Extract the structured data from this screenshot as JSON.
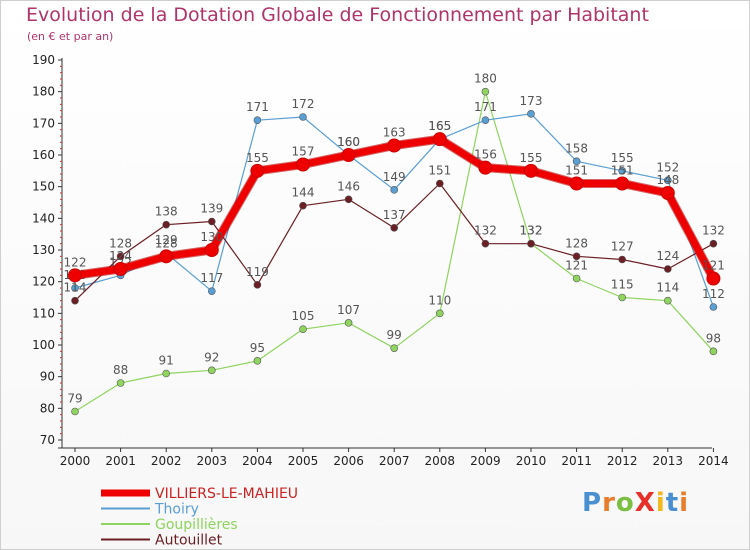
{
  "title": "Evolution de la Dotation Globale de Fonctionnement par Habitant",
  "subtitle": "(en € et par an)",
  "logo": {
    "text": "ProXiti",
    "letters": [
      "P",
      "r",
      "o",
      "X",
      "i",
      "t",
      "i"
    ],
    "colors": [
      "#4a8fd1",
      "#e87d2b",
      "#7cc043",
      "#e8302b",
      "#f2b81c",
      "#4a8fd1",
      "#e87d2b"
    ]
  },
  "chart_data": {
    "type": "line",
    "title": "Evolution de la Dotation Globale de Fonctionnement par Habitant",
    "ylabel": "(en € et par an)",
    "xlabel": "",
    "ylim": [
      70,
      190
    ],
    "yticks": [
      70,
      80,
      90,
      100,
      110,
      120,
      130,
      140,
      150,
      160,
      170,
      180,
      190
    ],
    "x": [
      2000,
      2001,
      2002,
      2003,
      2004,
      2005,
      2006,
      2007,
      2008,
      2009,
      2010,
      2011,
      2012,
      2013,
      2014
    ],
    "grid": false,
    "legend": "bottom-left",
    "series": [
      {
        "name": "Goupillières",
        "color": "#8fd45e",
        "width": 1.2,
        "marker": 3.5,
        "values": [
          79,
          88,
          91,
          92,
          95,
          105,
          107,
          99,
          110,
          180,
          132,
          121,
          115,
          114,
          98
        ]
      },
      {
        "name": "Thoiry",
        "color": "#5a9fd4",
        "width": 1.2,
        "marker": 3.5,
        "values": [
          118,
          122,
          129,
          117,
          171,
          172,
          160,
          149,
          165,
          171,
          173,
          158,
          155,
          152,
          112
        ]
      },
      {
        "name": "Autouillet",
        "color": "#6b1f24",
        "width": 1.2,
        "marker": 3.5,
        "values": [
          114,
          128,
          138,
          139,
          119,
          144,
          146,
          137,
          151,
          132,
          132,
          128,
          127,
          124,
          132
        ]
      },
      {
        "name": "VILLIERS-LE-MAHIEU",
        "color": "#ee0000",
        "width": 7,
        "marker": 6.5,
        "values": [
          122,
          124,
          128,
          130,
          155,
          157,
          160,
          163,
          165,
          156,
          155,
          151,
          151,
          148,
          121
        ]
      }
    ],
    "legend_order": [
      "VILLIERS-LE-MAHIEU",
      "Thoiry",
      "Goupillières",
      "Autouillet"
    ]
  }
}
